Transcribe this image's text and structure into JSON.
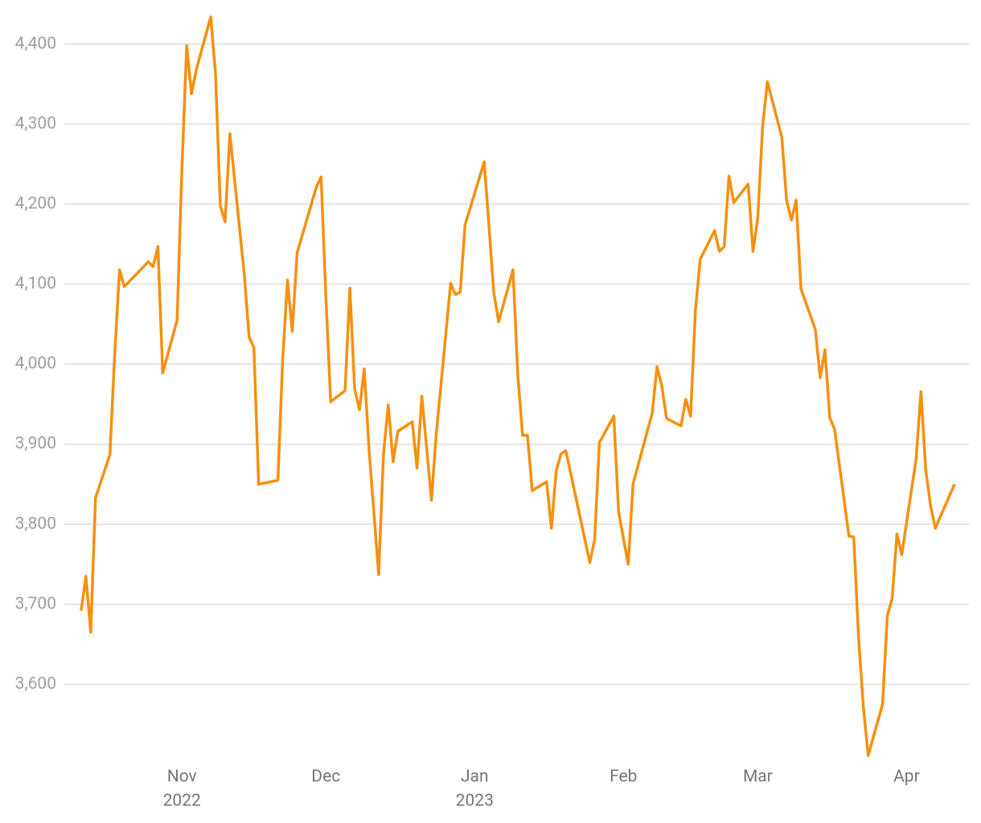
{
  "chart_data": {
    "type": "line",
    "color": "#f5900f",
    "grid": true,
    "x": [
      -21,
      -20,
      -19,
      -18,
      -15,
      -14,
      -13,
      -12,
      -7,
      -6,
      -5,
      -4,
      -1,
      0,
      1,
      2,
      3,
      6,
      7,
      8,
      9,
      10,
      13,
      14,
      15,
      16,
      20,
      21,
      22,
      23,
      24,
      28,
      29,
      30,
      31,
      34,
      35,
      36,
      37,
      38,
      39,
      41,
      42,
      43,
      44,
      45,
      48,
      49,
      50,
      52,
      53,
      56,
      57,
      58,
      59,
      63,
      65,
      66,
      69,
      70,
      71,
      72,
      73,
      76,
      77,
      78,
      79,
      80,
      85,
      86,
      87,
      90,
      91,
      93,
      94,
      98,
      99,
      100,
      101,
      104,
      105,
      106,
      107,
      108,
      111,
      112,
      113,
      114,
      115,
      118,
      119,
      120,
      121,
      122,
      125,
      126,
      127,
      128,
      129,
      132,
      133,
      134,
      135,
      136,
      139,
      140,
      141,
      142,
      143,
      146,
      147,
      148,
      149,
      150,
      153,
      154,
      155,
      156,
      157,
      161
    ],
    "values": [
      3692,
      3735,
      3665,
      3833,
      3887,
      4013,
      4118,
      4097,
      4128,
      4122,
      4147,
      3989,
      4055,
      4244,
      4398,
      4338,
      4368,
      4434,
      4363,
      4198,
      4178,
      4288,
      4112,
      4034,
      4021,
      3850,
      3855,
      4006,
      4105,
      4041,
      4139,
      4221,
      4234,
      4084,
      3953,
      3967,
      4095,
      3969,
      3943,
      3994,
      3893,
      3737,
      3887,
      3949,
      3878,
      3916,
      3928,
      3870,
      3960,
      3830,
      3913,
      4101,
      4087,
      4090,
      4174,
      4253,
      4089,
      4053,
      4118,
      3985,
      3911,
      3911,
      3842,
      3853,
      3795,
      3867,
      3888,
      3892,
      3752,
      3781,
      3902,
      3935,
      3815,
      3750,
      3850,
      3939,
      3997,
      3973,
      3932,
      3923,
      3956,
      3935,
      4067,
      4131,
      4167,
      4141,
      4147,
      4235,
      4202,
      4225,
      4141,
      4183,
      4297,
      4353,
      4284,
      4205,
      4180,
      4205,
      4094,
      4043,
      3983,
      4018,
      3933,
      3919,
      3785,
      3784,
      3658,
      3572,
      3511,
      3575,
      3686,
      3707,
      3788,
      3762,
      3882,
      3966,
      3868,
      3823,
      3795,
      3850
    ],
    "xlim": [
      -24.5,
      164
    ],
    "xticks": [
      {
        "value": 0,
        "label": "Nov",
        "year": "2022"
      },
      {
        "value": 30,
        "label": "Dec"
      },
      {
        "value": 61,
        "label": "Jan",
        "year": "2023"
      },
      {
        "value": 92,
        "label": "Feb"
      },
      {
        "value": 120,
        "label": "Mar"
      },
      {
        "value": 151,
        "label": "Apr"
      }
    ],
    "ylim": [
      3506,
      4435
    ],
    "yticks": [
      {
        "value": 3600,
        "label": "3,600"
      },
      {
        "value": 3700,
        "label": "3,700"
      },
      {
        "value": 3800,
        "label": "3,800"
      },
      {
        "value": 3900,
        "label": "3,900"
      },
      {
        "value": 4000,
        "label": "4,000"
      },
      {
        "value": 4100,
        "label": "4,100"
      },
      {
        "value": 4200,
        "label": "4,200"
      },
      {
        "value": 4300,
        "label": "4,300"
      },
      {
        "value": 4400,
        "label": "4,400"
      }
    ]
  }
}
